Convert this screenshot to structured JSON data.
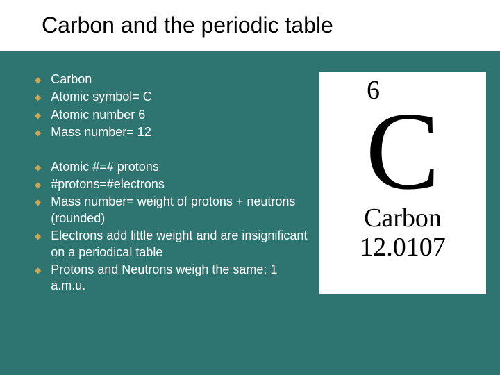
{
  "title": "Carbon and the periodic table",
  "colors": {
    "background": "#2e7571",
    "title_bg": "#ffffff",
    "title_text": "#000000",
    "body_text": "#ffffff",
    "bullet_marker": "#cfa64e",
    "card_bg": "#ffffff",
    "card_text": "#000000"
  },
  "typography": {
    "title_fontsize": 32,
    "body_fontsize": 18,
    "atomic_num_fontsize": 38,
    "symbol_fontsize": 160,
    "name_fontsize": 38,
    "mass_fontsize": 38
  },
  "bullets_block1": [
    "Carbon",
    "Atomic symbol= C",
    "Atomic number 6",
    "Mass number= 12"
  ],
  "bullets_block2": [
    "Atomic #=# protons",
    "#protons=#electrons",
    "Mass number= weight of protons + neutrons (rounded)",
    "Electrons add little weight and are insignificant on a periodical table",
    "Protons and Neutrons weigh the same: 1 a.m.u."
  ],
  "element": {
    "atomic_number": "6",
    "symbol": "C",
    "name": "Carbon",
    "mass": "12.0107"
  }
}
